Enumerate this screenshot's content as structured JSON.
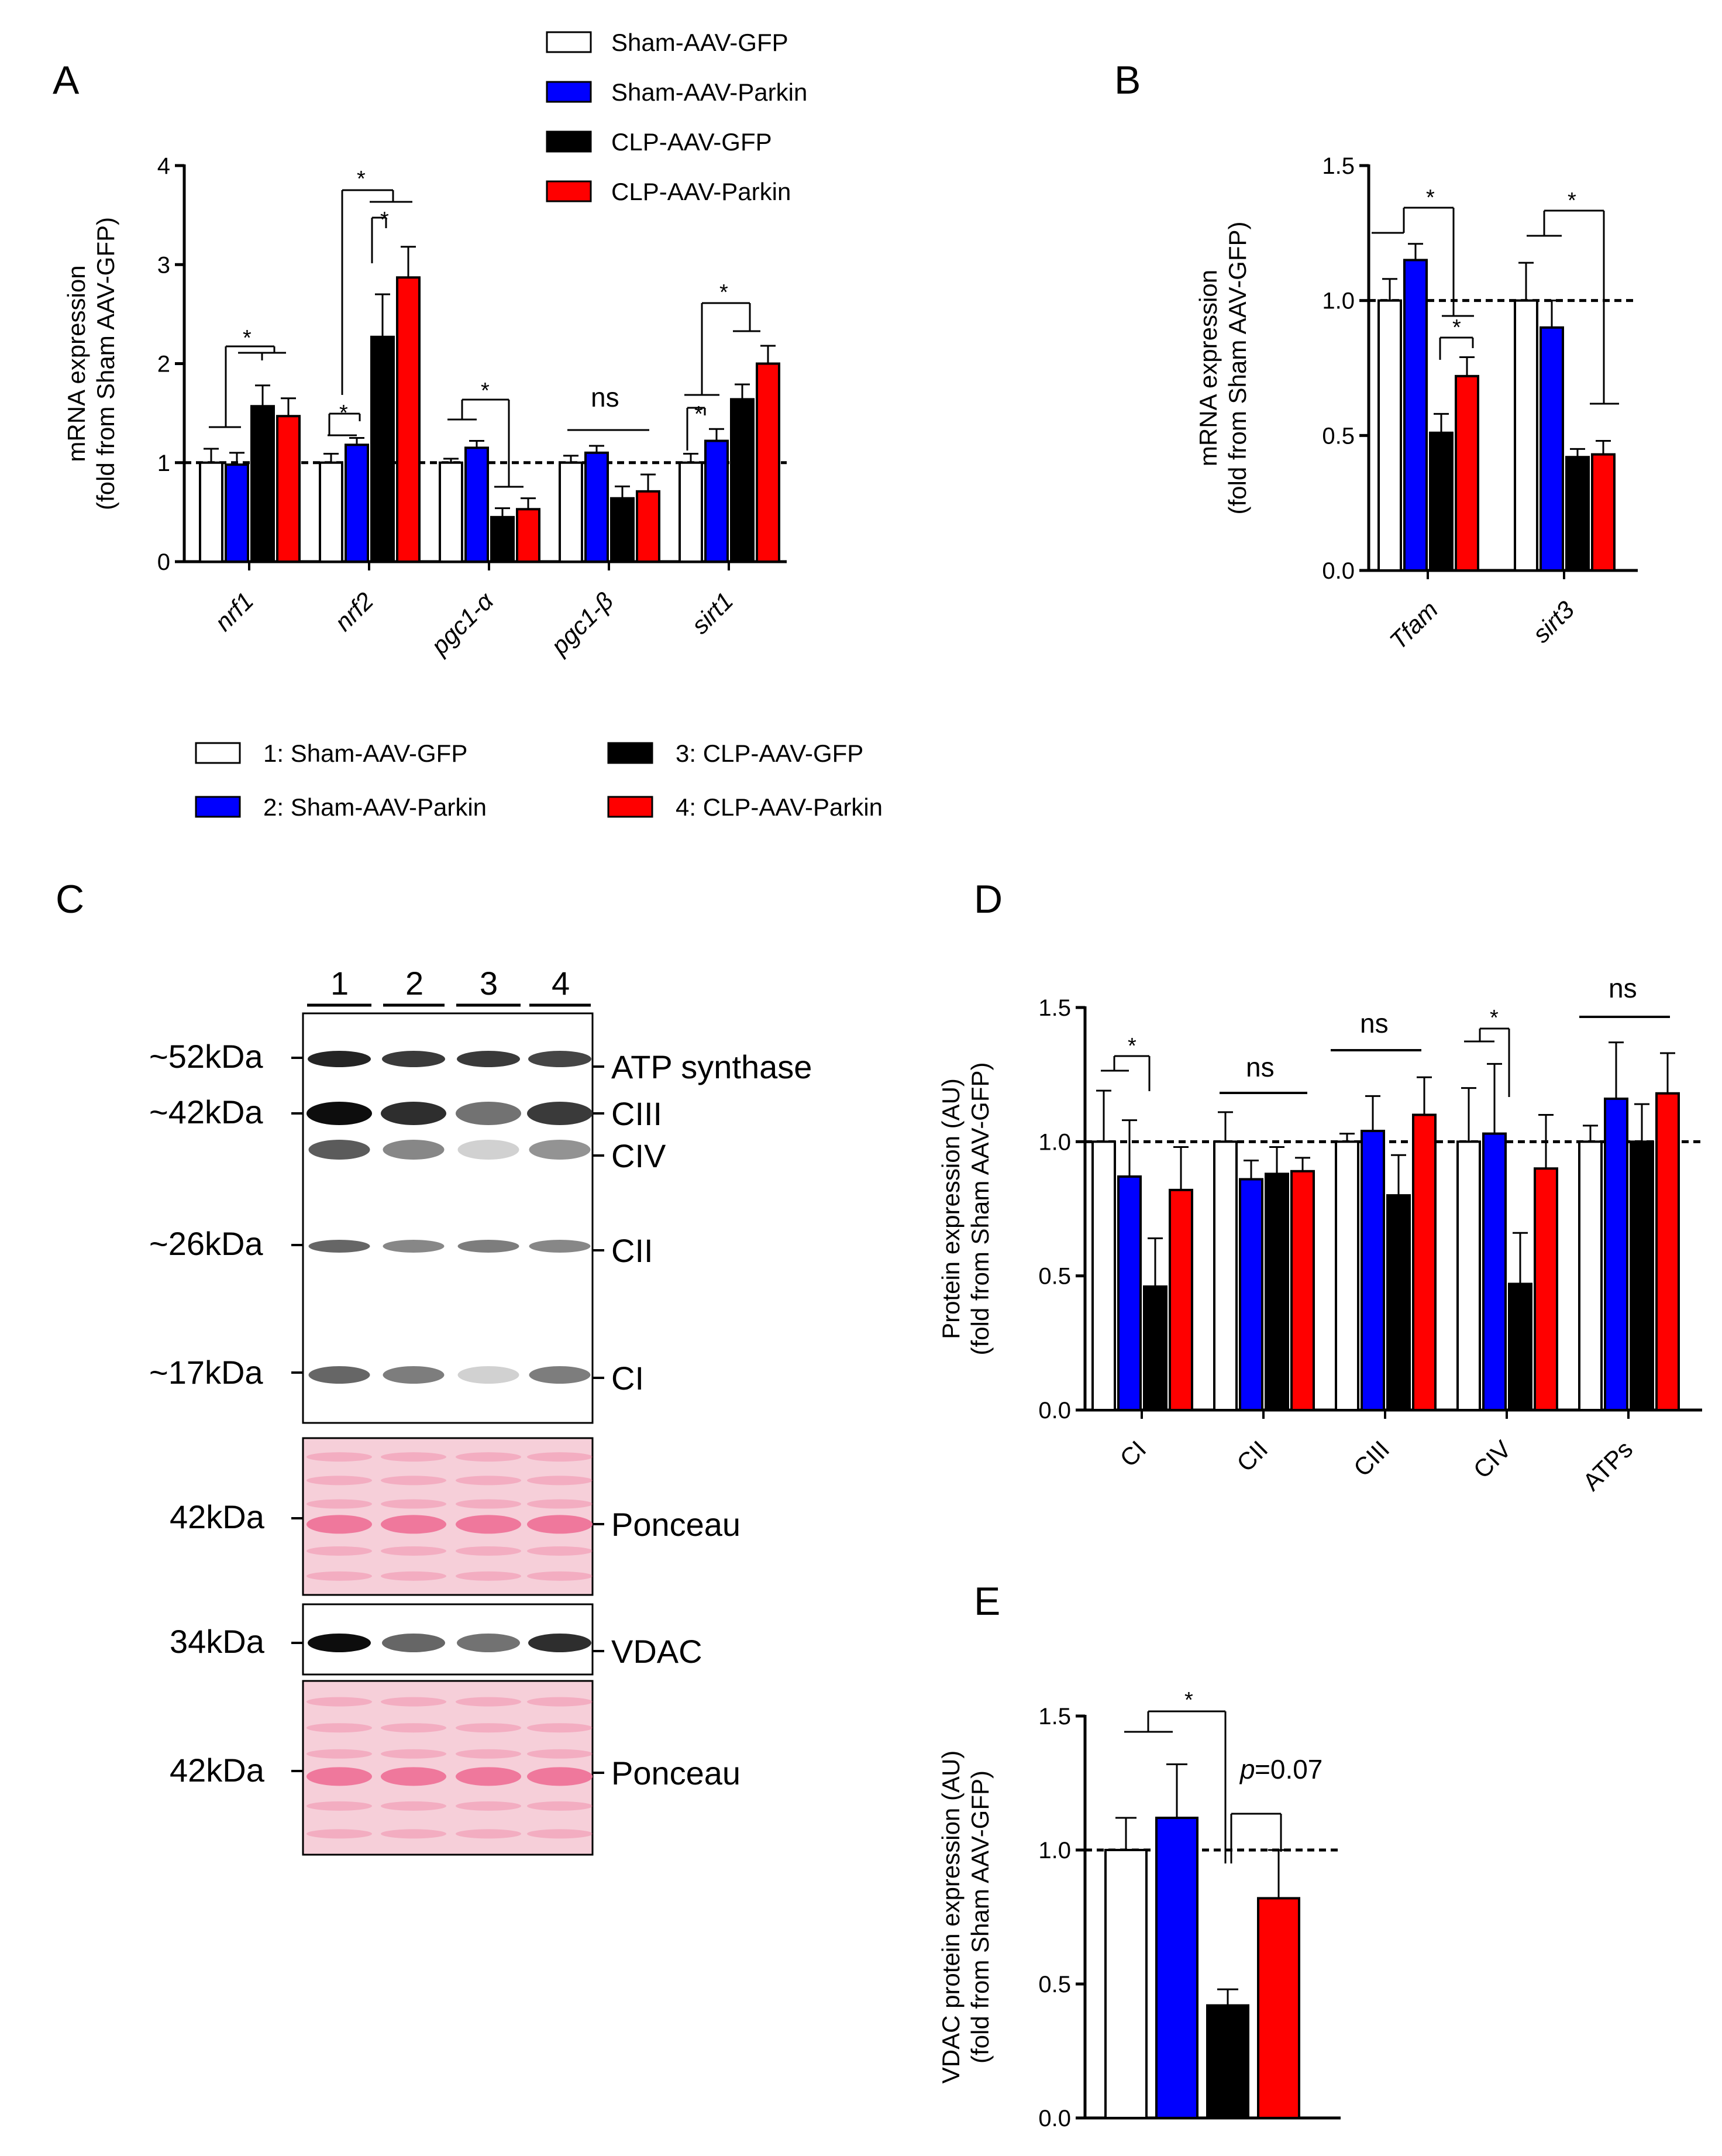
{
  "colors": {
    "group1": "#ffffff",
    "group2": "#0000ff",
    "group3": "#000000",
    "group4": "#ff0000",
    "ponceau_bg": "#f6cfd9",
    "ponceau_band": "#ee6e95"
  },
  "legend_top": {
    "items": [
      "Sham-AAV-GFP",
      "Sham-AAV-Parkin",
      "CLP-AAV-GFP",
      "CLP-AAV-Parkin"
    ]
  },
  "legend_mid": {
    "items": [
      "1: Sham-AAV-GFP",
      "2: Sham-AAV-Parkin",
      "3: CLP-AAV-GFP",
      "4: CLP-AAV-Parkin"
    ]
  },
  "panel_labels": {
    "a": "A",
    "b": "B",
    "c": "C",
    "d": "D",
    "e": "E"
  },
  "blot": {
    "lanes": [
      "1",
      "2",
      "3",
      "4"
    ],
    "mw_markers": [
      "~52kDa",
      "~42kDa",
      "~26kDa",
      "~17kDa",
      "42kDa",
      "34kDa",
      "42kDa"
    ],
    "band_labels": [
      "ATP synthase",
      "CIII",
      "CIV",
      "CII",
      "CI",
      "Ponceau",
      "VDAC",
      "Ponceau"
    ],
    "intensity": {
      "atp": [
        0.9,
        0.8,
        0.8,
        0.75
      ],
      "ciii": [
        1.0,
        0.85,
        0.55,
        0.8
      ],
      "civ": [
        0.65,
        0.45,
        0.12,
        0.4
      ],
      "cii": [
        0.6,
        0.45,
        0.5,
        0.45
      ],
      "ci": [
        0.6,
        0.5,
        0.12,
        0.5
      ],
      "vdac": [
        1.0,
        0.6,
        0.55,
        0.85
      ]
    }
  },
  "chart_data": [
    {
      "type": "bar",
      "id": "A",
      "title": "",
      "ylabel": [
        "mRNA expression",
        "(fold from Sham AAV-GFP)"
      ],
      "ylim": [
        0,
        4
      ],
      "yticks": [
        "0",
        "1",
        "2",
        "3",
        "4"
      ],
      "categories": [
        "nrf1",
        "nrf2",
        "pgc1-α",
        "pgc1-β",
        "sirt1"
      ],
      "series": [
        {
          "name": "Sham-AAV-GFP",
          "values": [
            1.0,
            1.0,
            1.0,
            1.0,
            1.0
          ],
          "errors": [
            0.14,
            0.09,
            0.04,
            0.07,
            0.09
          ]
        },
        {
          "name": "Sham-AAV-Parkin",
          "values": [
            0.98,
            1.18,
            1.15,
            1.1,
            1.22
          ],
          "errors": [
            0.12,
            0.07,
            0.07,
            0.07,
            0.12
          ]
        },
        {
          "name": "CLP-AAV-GFP",
          "values": [
            1.57,
            2.27,
            0.45,
            0.64,
            1.64
          ],
          " errors_note": "",
          "errors": [
            0.21,
            0.43,
            0.09,
            0.12,
            0.15
          ]
        },
        {
          "name": "CLP-AAV-Parkin",
          "values": [
            1.47,
            2.87,
            0.53,
            0.71,
            2.0
          ],
          "errors": [
            0.18,
            0.31,
            0.11,
            0.17,
            0.18
          ]
        }
      ],
      "reference_line": 1.0,
      "annotations": [
        "*",
        "*",
        "*",
        "*",
        "*",
        "ns",
        "*",
        "*"
      ]
    },
    {
      "type": "bar",
      "id": "B",
      "title": "",
      "ylabel": [
        "mRNA expression",
        "(fold from Sham AAV-GFP)"
      ],
      "ylim": [
        0,
        1.5
      ],
      "yticks": [
        "0.0",
        "0.5",
        "1.0",
        "1.5"
      ],
      "categories": [
        "Tfam",
        "sirt3"
      ],
      "series": [
        {
          "name": "Sham-AAV-GFP",
          "values": [
            1.0,
            1.0
          ],
          "errors": [
            0.08,
            0.14
          ]
        },
        {
          "name": "Sham-AAV-Parkin",
          "values": [
            1.15,
            0.9
          ],
          "errors": [
            0.06,
            0.1
          ]
        },
        {
          "name": "CLP-AAV-GFP",
          "values": [
            0.51,
            0.42
          ],
          "errors": [
            0.07,
            0.03
          ]
        },
        {
          "name": "CLP-AAV-Parkin",
          "values": [
            0.72,
            0.43
          ],
          "errors": [
            0.07,
            0.05
          ]
        }
      ],
      "reference_line": 1.0,
      "annotations": [
        "*",
        "*",
        "*"
      ]
    },
    {
      "type": "bar",
      "id": "D",
      "title": "",
      "ylabel": [
        "Protein expression (AU)",
        "(fold from Sham AAV-GFP)"
      ],
      "ylim": [
        0,
        1.5
      ],
      "yticks": [
        "0.0",
        "0.5",
        "1.0",
        "1.5"
      ],
      "categories": [
        "CI",
        "CII",
        "CIII",
        "CIV",
        "ATPs"
      ],
      "series": [
        {
          "name": "Sham-AAV-GFP",
          "values": [
            1.0,
            1.0,
            1.0,
            1.0,
            1.0
          ],
          "errors": [
            0.19,
            0.11,
            0.03,
            0.2,
            0.06
          ]
        },
        {
          "name": "Sham-AAV-Parkin",
          "values": [
            0.87,
            0.86,
            1.04,
            1.03,
            1.16
          ],
          "errors": [
            0.21,
            0.07,
            0.13,
            0.26,
            0.21
          ]
        },
        {
          "name": "CLP-AAV-GFP",
          "values": [
            0.46,
            0.88,
            0.8,
            0.47,
            1.0
          ],
          "errors": [
            0.18,
            0.1,
            0.15,
            0.19,
            0.14
          ]
        },
        {
          "name": "CLP-AAV-Parkin",
          "values": [
            0.82,
            0.89,
            1.1,
            0.9,
            1.18
          ],
          "errors": [
            0.16,
            0.05,
            0.14,
            0.2,
            0.15
          ]
        }
      ],
      "reference_line": 1.0,
      "annotations": [
        "*",
        "ns",
        "ns",
        "*",
        "ns"
      ]
    },
    {
      "type": "bar",
      "id": "E",
      "title": "",
      "ylabel": [
        "VDAC protein expression (AU)",
        "(fold from Sham AAV-GFP)"
      ],
      "ylim": [
        0,
        1.5
      ],
      "yticks": [
        "0.0",
        "0.5",
        "1.0",
        "1.5"
      ],
      "categories": [
        "Sham-AAV-GFP",
        "Sham-AAV-Parkin",
        "CLP-AAV-GFP",
        "CLP-AAV-Parkin"
      ],
      "values": [
        1.0,
        1.12,
        0.42,
        0.82
      ],
      "errors": [
        0.12,
        0.2,
        0.06,
        0.18
      ],
      "reference_line": 1.0,
      "annotations": [
        "*",
        "p",
        "=0.07"
      ]
    }
  ]
}
